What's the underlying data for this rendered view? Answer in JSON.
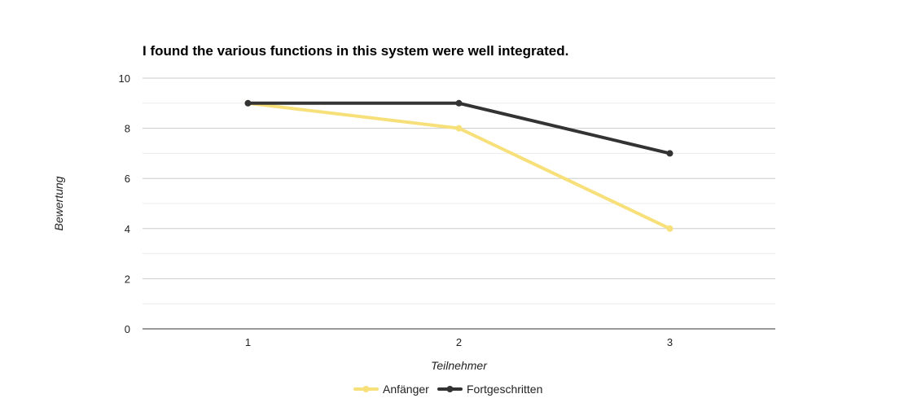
{
  "chart_data": {
    "type": "line",
    "title": "I found the various functions in this system were well integrated.",
    "xlabel": "Teilnehmer",
    "ylabel": "Bewertung",
    "categories": [
      "1",
      "2",
      "3"
    ],
    "ylim": [
      0,
      10
    ],
    "yticks": [
      0,
      2,
      4,
      6,
      8,
      10
    ],
    "grid": true,
    "legend_position": "bottom",
    "series": [
      {
        "name": "Anfänger",
        "values": [
          9,
          8,
          4
        ],
        "color": "#f7e07a"
      },
      {
        "name": "Fortgeschritten",
        "values": [
          9,
          9,
          7
        ],
        "color": "#333333"
      }
    ]
  }
}
